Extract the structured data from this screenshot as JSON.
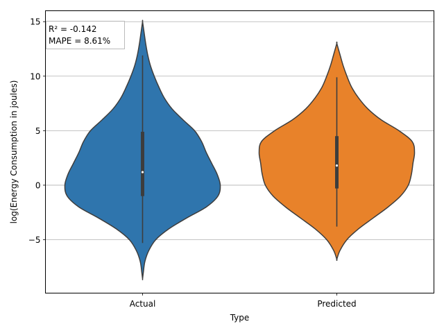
{
  "chart_data": {
    "type": "violin",
    "title": "",
    "xlabel": "Type",
    "ylabel": "log(Energy Consumption in joules)",
    "categories": [
      "Actual",
      "Predicted"
    ],
    "ylim": [
      -9.9,
      16.0
    ],
    "yticks": [
      -5,
      0,
      5,
      10,
      15
    ],
    "ytick_labels": [
      "−5",
      "0",
      "5",
      "10",
      "15"
    ],
    "grid": "y",
    "colors": {
      "Actual": "#2f75ad",
      "Predicted": "#e8822a",
      "outline": "#3d3d3d"
    },
    "annotation": [
      "R² = -0.142",
      "MAPE = 8.61%"
    ],
    "series": [
      {
        "category": "Actual",
        "min": -5.3,
        "q1": -1.0,
        "median": 1.2,
        "q3": 4.9,
        "max": 11.9,
        "density": [
          [
            -8.6,
            0.0
          ],
          [
            -8.0,
            0.01
          ],
          [
            -7.0,
            0.03
          ],
          [
            -6.0,
            0.08
          ],
          [
            -5.0,
            0.17
          ],
          [
            -4.0,
            0.34
          ],
          [
            -3.0,
            0.57
          ],
          [
            -2.0,
            0.82
          ],
          [
            -1.0,
            0.97
          ],
          [
            0.0,
            1.0
          ],
          [
            1.0,
            0.96
          ],
          [
            2.0,
            0.89
          ],
          [
            3.0,
            0.82
          ],
          [
            4.0,
            0.76
          ],
          [
            5.0,
            0.67
          ],
          [
            6.0,
            0.52
          ],
          [
            7.0,
            0.38
          ],
          [
            8.0,
            0.28
          ],
          [
            9.0,
            0.21
          ],
          [
            10.0,
            0.15
          ],
          [
            11.0,
            0.1
          ],
          [
            12.0,
            0.065
          ],
          [
            13.0,
            0.04
          ],
          [
            14.0,
            0.02
          ],
          [
            15.0,
            0.0
          ]
        ]
      },
      {
        "category": "Predicted",
        "min": -3.8,
        "q1": -0.3,
        "median": 1.8,
        "q3": 4.5,
        "max": 9.9,
        "density": [
          [
            -6.8,
            0.0
          ],
          [
            -6.0,
            0.04
          ],
          [
            -5.0,
            0.13
          ],
          [
            -4.0,
            0.28
          ],
          [
            -3.0,
            0.47
          ],
          [
            -2.0,
            0.66
          ],
          [
            -1.0,
            0.82
          ],
          [
            0.0,
            0.92
          ],
          [
            1.0,
            0.96
          ],
          [
            2.0,
            0.98
          ],
          [
            3.0,
            1.0
          ],
          [
            4.0,
            0.97
          ],
          [
            5.0,
            0.8
          ],
          [
            6.0,
            0.57
          ],
          [
            7.0,
            0.4
          ],
          [
            8.0,
            0.28
          ],
          [
            9.0,
            0.19
          ],
          [
            10.0,
            0.13
          ],
          [
            11.0,
            0.08
          ],
          [
            12.0,
            0.04
          ],
          [
            13.0,
            0.0
          ]
        ]
      }
    ]
  }
}
